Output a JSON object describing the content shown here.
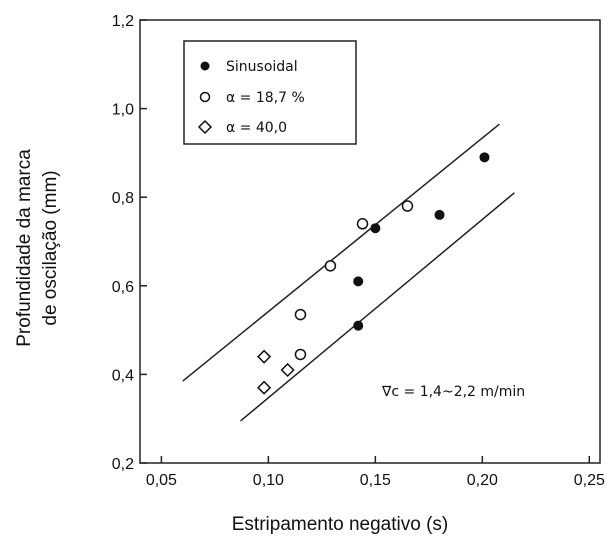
{
  "chart_data": {
    "type": "scatter",
    "xlabel": "Estripamento negativo (s)",
    "ylabel": [
      "Profundidade da marca",
      "de oscilação (mm)"
    ],
    "xlim": [
      0.04,
      0.255
    ],
    "ylim": [
      0.2,
      1.2
    ],
    "x_ticks": [
      "0,05",
      "0,10",
      "0,15",
      "0,20",
      "0,25"
    ],
    "x_tick_values": [
      0.05,
      0.1,
      0.15,
      0.2,
      0.25
    ],
    "y_ticks": [
      "0,2",
      "0,4",
      "0,6",
      "0,8",
      "1,0",
      "1,2"
    ],
    "y_tick_values": [
      0.2,
      0.4,
      0.6,
      0.8,
      1.0,
      1.2
    ],
    "grid": false,
    "legend_position": "top-left",
    "series": [
      {
        "name": "Sinusoidal",
        "marker": "filled-circle",
        "points": [
          [
            0.142,
            0.61
          ],
          [
            0.142,
            0.51
          ],
          [
            0.15,
            0.73
          ],
          [
            0.18,
            0.76
          ],
          [
            0.201,
            0.89
          ]
        ]
      },
      {
        "name": "α = 18,7 %",
        "marker": "open-circle",
        "points": [
          [
            0.115,
            0.535
          ],
          [
            0.115,
            0.445
          ],
          [
            0.129,
            0.645
          ],
          [
            0.144,
            0.74
          ],
          [
            0.165,
            0.78
          ]
        ]
      },
      {
        "name": "α = 40,0",
        "marker": "open-diamond",
        "points": [
          [
            0.098,
            0.44
          ],
          [
            0.098,
            0.37
          ],
          [
            0.109,
            0.41
          ]
        ]
      }
    ],
    "bound_lines": [
      {
        "x": [
          0.06,
          0.208
        ],
        "y": [
          0.385,
          0.965
        ]
      },
      {
        "x": [
          0.087,
          0.215
        ],
        "y": [
          0.295,
          0.81
        ]
      }
    ],
    "annotation": "∇c = 1,4~2,2 m/min"
  }
}
